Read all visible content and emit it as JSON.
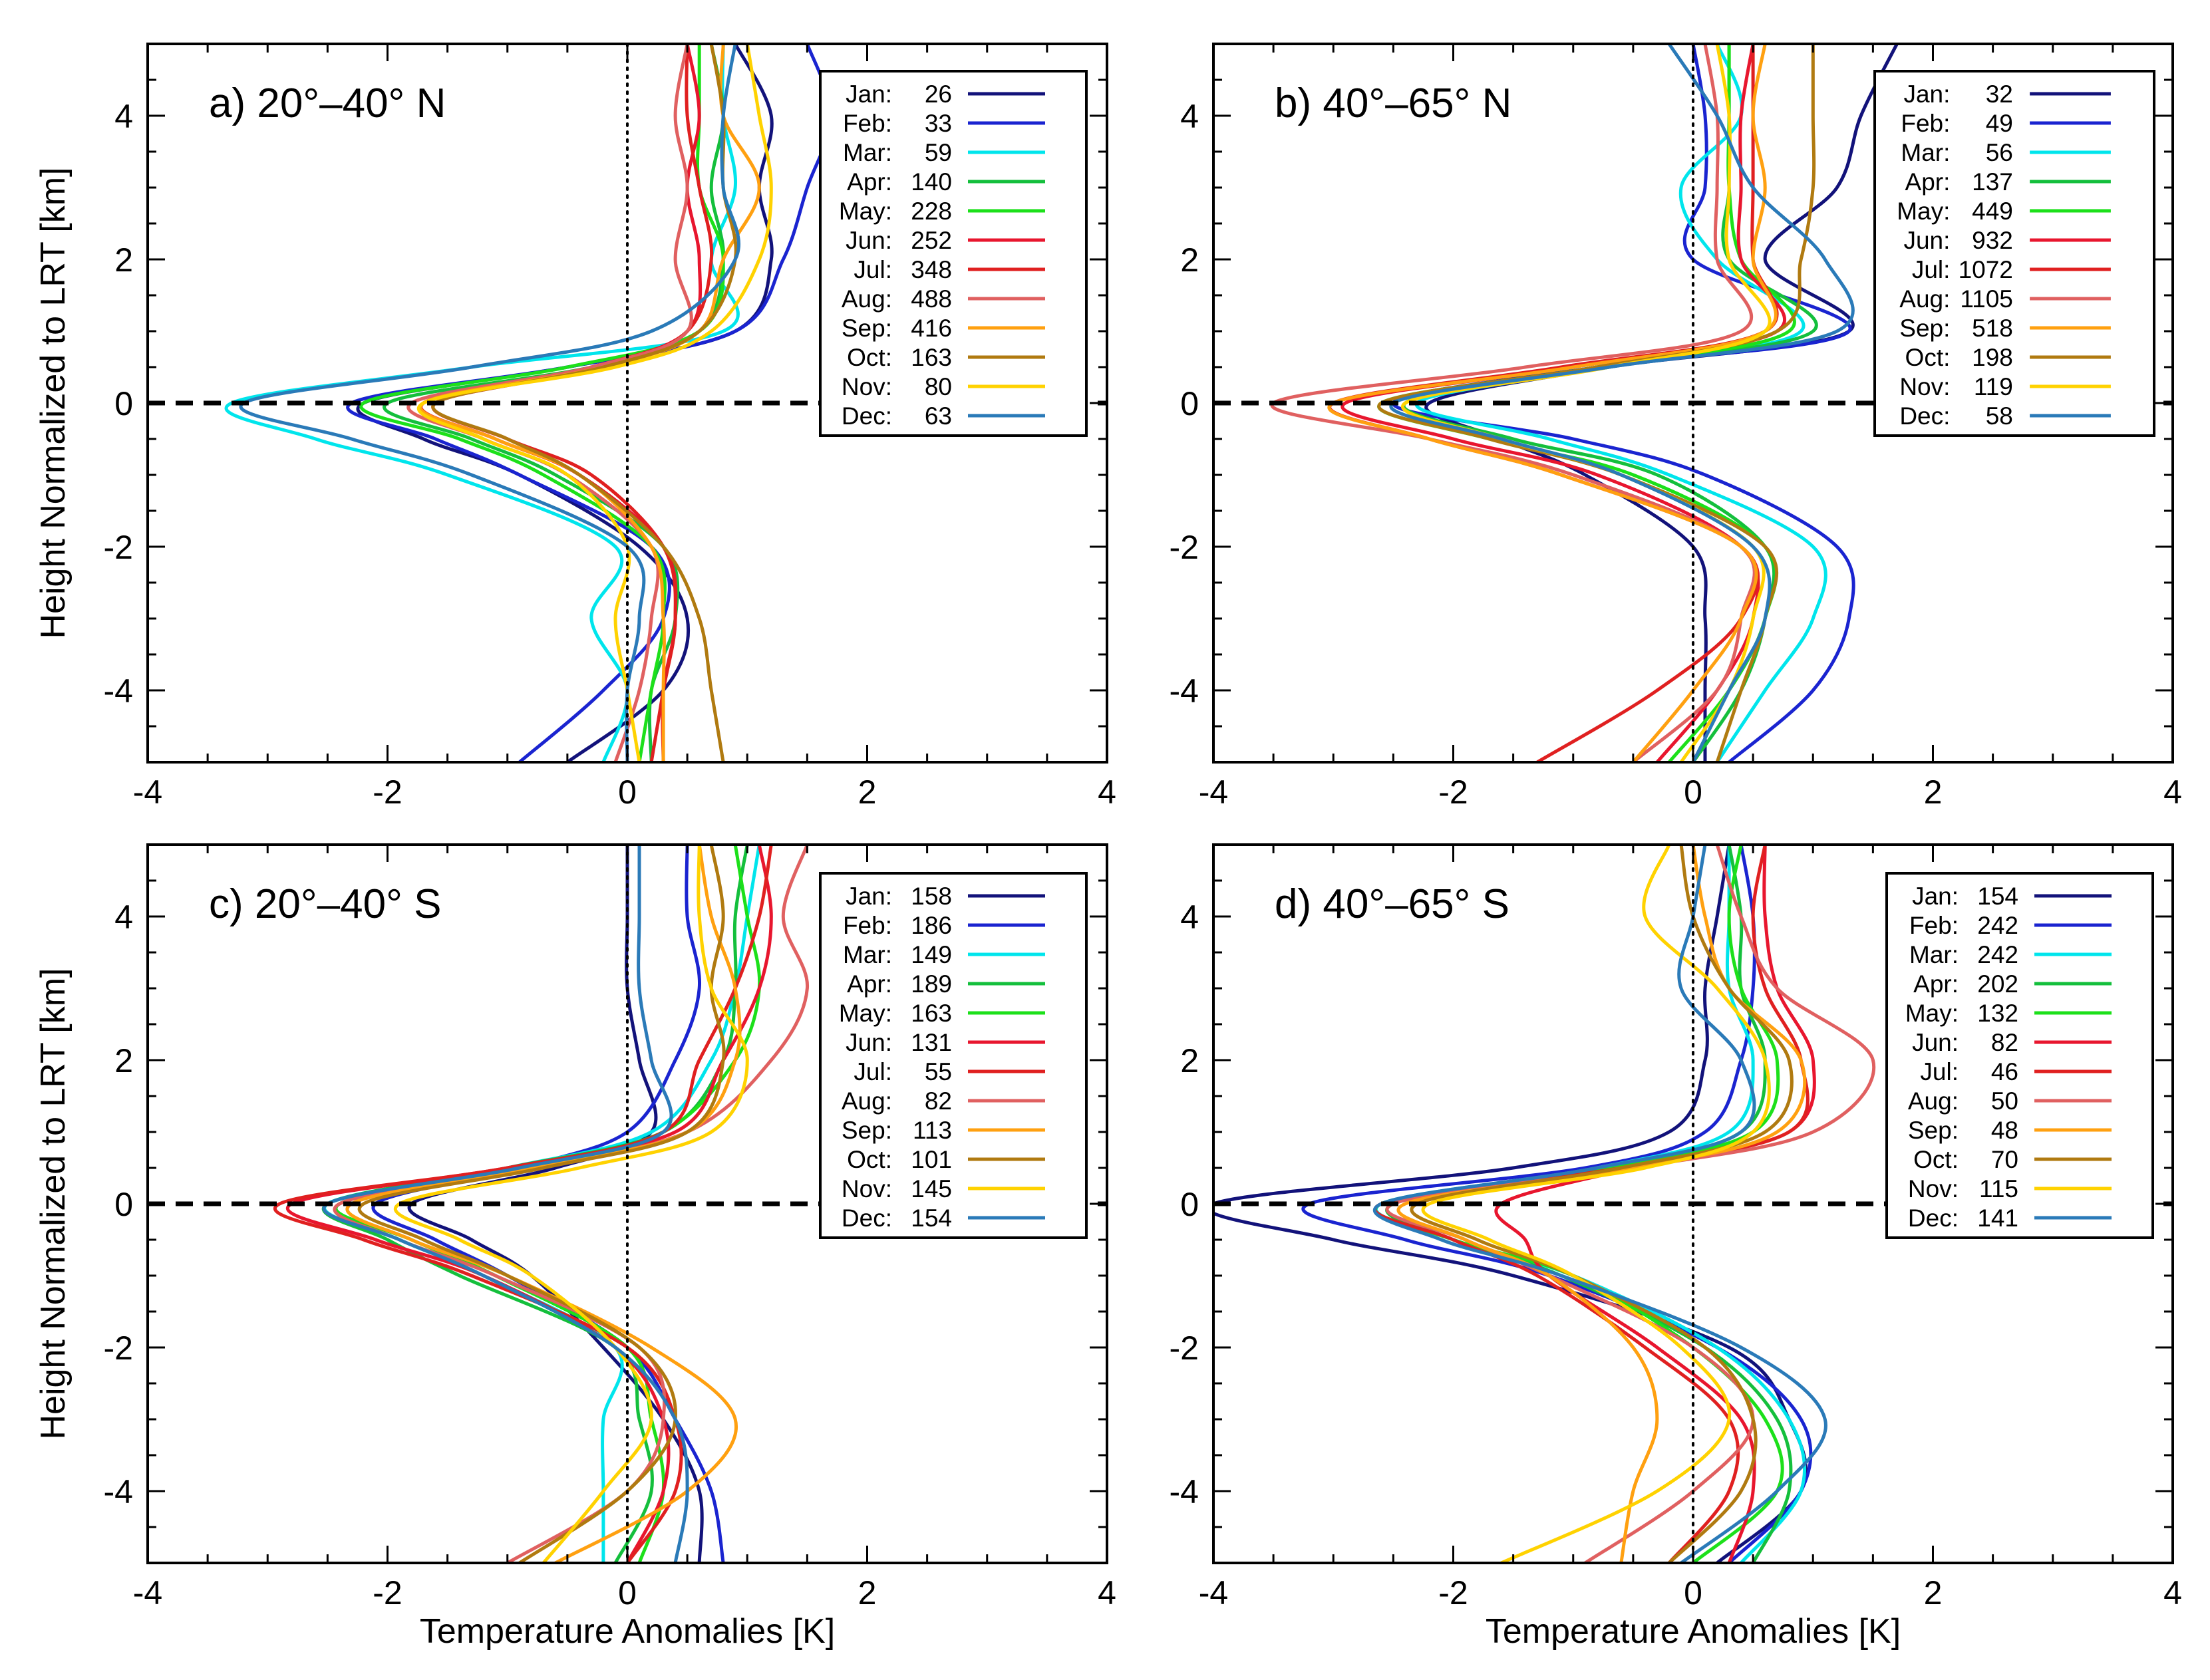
{
  "month_colors": [
    "#12127a",
    "#1a24d0",
    "#00e5ec",
    "#14bf3c",
    "#1ce01a",
    "#e8162e",
    "#e02020",
    "#e06060",
    "#ffa010",
    "#b07a10",
    "#ffd200",
    "#2a7ab8"
  ],
  "chart_data": [
    {
      "type": "line",
      "title": "a) 20°–40° N",
      "xlabel": "",
      "ylabel": "Height Normalized to LRT [km]",
      "xlim": [
        -4,
        4
      ],
      "ylim": [
        -5,
        5
      ],
      "xticks": [
        "-4",
        "-2",
        "0",
        "2",
        "4"
      ],
      "yticks": [
        "-4",
        "-2",
        "0",
        "2",
        "4"
      ],
      "y": [
        -5,
        -4,
        -3,
        -2,
        -1,
        -0.5,
        0,
        0.5,
        1,
        2,
        3,
        4,
        5
      ],
      "series": [
        {
          "name": "Jan",
          "count": 26,
          "values": [
            -0.5,
            0.3,
            0.5,
            0.1,
            -0.9,
            -1.7,
            -2.2,
            -0.5,
            0.9,
            1.2,
            1.1,
            1.2,
            0.9
          ]
        },
        {
          "name": "Feb",
          "count": 33,
          "values": [
            -0.9,
            -0.2,
            0.3,
            0.2,
            -0.9,
            -1.6,
            -2.3,
            -0.5,
            0.9,
            1.3,
            1.5,
            1.7,
            1.5
          ]
        },
        {
          "name": "Mar",
          "count": 59,
          "values": [
            -0.2,
            0.0,
            -0.3,
            -0.1,
            -1.5,
            -2.6,
            -3.3,
            -1.3,
            0.8,
            0.7,
            0.9,
            0.8,
            0.8
          ]
        },
        {
          "name": "Apr",
          "count": 140,
          "values": [
            0.2,
            0.2,
            0.4,
            0.3,
            -0.6,
            -1.3,
            -2.0,
            -0.3,
            0.6,
            0.8,
            0.7,
            0.8,
            0.7
          ]
        },
        {
          "name": "May",
          "count": 228,
          "values": [
            0.1,
            0.2,
            0.3,
            0.2,
            -0.7,
            -1.4,
            -2.2,
            -0.5,
            0.6,
            0.8,
            0.6,
            0.6,
            0.6
          ]
        },
        {
          "name": "Jun",
          "count": 252,
          "values": [
            0.3,
            0.3,
            0.4,
            0.3,
            -0.4,
            -1.1,
            -1.7,
            -0.3,
            0.5,
            0.6,
            0.5,
            0.6,
            0.5
          ]
        },
        {
          "name": "Jul",
          "count": 348,
          "values": [
            0.2,
            0.3,
            0.4,
            0.3,
            -0.3,
            -1.0,
            -1.6,
            -0.2,
            0.5,
            0.7,
            0.6,
            0.5,
            0.5
          ]
        },
        {
          "name": "Aug",
          "count": 488,
          "values": [
            -0.1,
            0.1,
            0.2,
            0.2,
            -0.5,
            -1.2,
            -1.8,
            -0.3,
            0.5,
            0.4,
            0.5,
            0.4,
            0.5
          ]
        },
        {
          "name": "Sep",
          "count": 416,
          "values": [
            0.3,
            0.3,
            0.3,
            0.2,
            -0.4,
            -1.1,
            -1.7,
            -0.2,
            0.6,
            0.8,
            1.1,
            0.8,
            0.8
          ]
        },
        {
          "name": "Oct",
          "count": 163,
          "values": [
            0.8,
            0.7,
            0.6,
            0.3,
            -0.4,
            -1.0,
            -1.6,
            -0.2,
            0.6,
            0.9,
            0.8,
            0.8,
            0.7
          ]
        },
        {
          "name": "Nov",
          "count": 80,
          "values": [
            0.1,
            0.0,
            -0.1,
            0.0,
            -0.5,
            -1.2,
            -1.7,
            -0.1,
            0.7,
            1.1,
            1.2,
            1.1,
            1.0
          ]
        },
        {
          "name": "Dec",
          "count": 63,
          "values": [
            0.0,
            0.0,
            0.1,
            0.0,
            -1.3,
            -2.3,
            -3.2,
            -1.3,
            0.2,
            0.9,
            0.8,
            0.8,
            0.9
          ]
        }
      ]
    },
    {
      "type": "line",
      "title": "b) 40°–65° N",
      "xlabel": "",
      "ylabel": "",
      "xlim": [
        -4,
        4
      ],
      "ylim": [
        -5,
        5
      ],
      "xticks": [
        "-4",
        "-2",
        "0",
        "2",
        "4"
      ],
      "yticks": [
        "-4",
        "-2",
        "0",
        "2",
        "4"
      ],
      "y": [
        -5,
        -4,
        -3,
        -2,
        -1,
        -0.5,
        0,
        0.5,
        1,
        2,
        3,
        4,
        5
      ],
      "series": [
        {
          "name": "Jan",
          "count": 32,
          "values": [
            0.1,
            0.1,
            0.1,
            0.0,
            -0.9,
            -1.6,
            -2.2,
            -0.7,
            1.3,
            0.6,
            1.2,
            1.4,
            1.7
          ]
        },
        {
          "name": "Feb",
          "count": 49,
          "values": [
            0.3,
            1.0,
            1.3,
            1.2,
            0.1,
            -1.0,
            -2.5,
            -0.8,
            1.3,
            0.0,
            0.1,
            0.1,
            0.0
          ]
        },
        {
          "name": "Mar",
          "count": 56,
          "values": [
            0.2,
            0.6,
            1.0,
            1.0,
            -0.2,
            -1.2,
            -2.3,
            -0.7,
            0.9,
            0.2,
            -0.1,
            0.4,
            0.2
          ]
        },
        {
          "name": "Apr",
          "count": 137,
          "values": [
            0.0,
            0.4,
            0.6,
            0.6,
            -0.3,
            -1.5,
            -2.4,
            -0.8,
            1.0,
            0.3,
            0.3,
            0.3,
            0.3
          ]
        },
        {
          "name": "May",
          "count": 449,
          "values": [
            -0.2,
            0.3,
            0.6,
            0.6,
            -0.5,
            -1.7,
            -2.6,
            -0.8,
            0.8,
            0.4,
            0.3,
            0.3,
            0.3
          ]
        },
        {
          "name": "Jun",
          "count": 932,
          "values": [
            -0.3,
            0.2,
            0.5,
            0.4,
            -0.8,
            -2.0,
            -2.9,
            -1.0,
            0.7,
            0.4,
            0.4,
            0.4,
            0.5
          ]
        },
        {
          "name": "Jul",
          "count": 1072,
          "values": [
            -1.3,
            -0.3,
            0.4,
            0.4,
            -1.1,
            -2.2,
            -3.0,
            -1.1,
            0.6,
            0.5,
            0.5,
            0.5,
            0.5
          ]
        },
        {
          "name": "Aug",
          "count": 1105,
          "values": [
            -0.5,
            0.2,
            0.4,
            0.4,
            -1.0,
            -2.2,
            -3.5,
            -1.4,
            0.4,
            0.2,
            0.2,
            0.2,
            0.1
          ]
        },
        {
          "name": "Sep",
          "count": 518,
          "values": [
            -0.5,
            0.0,
            0.4,
            0.4,
            -1.1,
            -2.2,
            -3.0,
            -1.0,
            0.6,
            0.5,
            0.6,
            0.5,
            0.6
          ]
        },
        {
          "name": "Oct",
          "count": 198,
          "values": [
            0.2,
            0.4,
            0.6,
            0.6,
            -0.6,
            -1.7,
            -2.6,
            -0.8,
            0.7,
            0.9,
            1.0,
            1.0,
            1.0
          ]
        },
        {
          "name": "Nov",
          "count": 119,
          "values": [
            -0.1,
            0.3,
            0.5,
            0.5,
            -0.6,
            -1.6,
            -2.4,
            -0.7,
            0.6,
            0.3,
            0.3,
            0.3,
            0.2
          ]
        },
        {
          "name": "Dec",
          "count": 58,
          "values": [
            0.0,
            0.3,
            0.6,
            0.5,
            -0.6,
            -1.6,
            -2.5,
            -0.7,
            1.2,
            1.1,
            0.5,
            0.2,
            -0.2
          ]
        }
      ]
    },
    {
      "type": "line",
      "title": "c) 20°–40° S",
      "xlabel": "Temperature Anomalies [K]",
      "ylabel": "Height Normalized to LRT [km]",
      "xlim": [
        -4,
        4
      ],
      "ylim": [
        -5,
        5
      ],
      "xticks": [
        "-4",
        "-2",
        "0",
        "2",
        "4"
      ],
      "yticks": [
        "-4",
        "-2",
        "0",
        "2",
        "4"
      ],
      "y": [
        -5,
        -4,
        -3,
        -2,
        -1,
        -0.5,
        0,
        0.5,
        1,
        2,
        3,
        4,
        5
      ],
      "series": [
        {
          "name": "Jan",
          "count": 158,
          "values": [
            0.6,
            0.6,
            0.3,
            -0.2,
            -0.8,
            -1.3,
            -1.8,
            -0.6,
            0.2,
            0.1,
            0.0,
            0.0,
            0.0
          ]
        },
        {
          "name": "Feb",
          "count": 186,
          "values": [
            0.8,
            0.7,
            0.4,
            0.0,
            -1.0,
            -1.6,
            -2.1,
            -0.9,
            0.0,
            0.4,
            0.6,
            0.5,
            0.5
          ]
        },
        {
          "name": "Mar",
          "count": 149,
          "values": [
            -0.2,
            -0.2,
            -0.2,
            -0.1,
            -1.2,
            -1.9,
            -2.5,
            -1.0,
            0.2,
            0.7,
            0.9,
            1.0,
            1.1
          ]
        },
        {
          "name": "Apr",
          "count": 189,
          "values": [
            -0.1,
            0.2,
            0.1,
            -0.1,
            -1.4,
            -2.0,
            -2.5,
            -1.0,
            0.3,
            0.8,
            0.9,
            0.9,
            1.0
          ]
        },
        {
          "name": "May",
          "count": 163,
          "values": [
            0.1,
            0.3,
            0.2,
            0.0,
            -1.1,
            -1.8,
            -2.4,
            -0.8,
            0.3,
            0.9,
            1.1,
            1.0,
            0.9
          ]
        },
        {
          "name": "Jun",
          "count": 131,
          "values": [
            0.0,
            0.3,
            0.3,
            -0.1,
            -1.2,
            -2.1,
            -2.8,
            -1.0,
            0.4,
            0.8,
            1.1,
            1.2,
            1.1
          ]
        },
        {
          "name": "Jul",
          "count": 55,
          "values": [
            0.0,
            0.4,
            0.4,
            0.0,
            -1.3,
            -2.2,
            -2.9,
            -1.0,
            0.3,
            0.6,
            0.9,
            1.1,
            1.2
          ]
        },
        {
          "name": "Aug",
          "count": 82,
          "values": [
            -1.0,
            0.0,
            0.3,
            0.1,
            -1.1,
            -1.9,
            -2.4,
            -0.8,
            0.5,
            1.2,
            1.5,
            1.3,
            1.5
          ]
        },
        {
          "name": "Sep",
          "count": 113,
          "values": [
            -0.6,
            0.5,
            0.9,
            0.2,
            -1.0,
            -1.8,
            -2.3,
            -0.8,
            0.5,
            0.9,
            0.9,
            0.7,
            0.6
          ]
        },
        {
          "name": "Oct",
          "count": 101,
          "values": [
            -0.9,
            0.0,
            0.4,
            0.1,
            -1.0,
            -1.7,
            -2.2,
            -0.7,
            0.5,
            0.8,
            0.7,
            0.8,
            0.7
          ]
        },
        {
          "name": "Nov",
          "count": 145,
          "values": [
            -0.7,
            -0.2,
            0.2,
            -0.1,
            -0.8,
            -1.4,
            -1.9,
            -0.4,
            0.7,
            1.0,
            0.7,
            0.6,
            0.6
          ]
        },
        {
          "name": "Dec",
          "count": 154,
          "values": [
            0.4,
            0.5,
            0.4,
            -0.1,
            -1.2,
            -1.9,
            -2.5,
            -0.9,
            0.3,
            0.2,
            0.1,
            0.1,
            0.1
          ]
        }
      ]
    },
    {
      "type": "line",
      "title": "d) 40°–65° S",
      "xlabel": "Temperature Anomalies [K]",
      "ylabel": "",
      "xlim": [
        -4,
        4
      ],
      "ylim": [
        -5,
        5
      ],
      "xticks": [
        "-4",
        "-2",
        "0",
        "2",
        "4"
      ],
      "yticks": [
        "-4",
        "-2",
        "0",
        "2",
        "4"
      ],
      "y": [
        -5,
        -4,
        -3,
        -2,
        -1,
        -0.5,
        0,
        0.5,
        1,
        2,
        3,
        4,
        5
      ],
      "series": [
        {
          "name": "Jan",
          "count": 154,
          "values": [
            0.2,
            0.9,
            0.8,
            0.3,
            -1.5,
            -3.0,
            -4.0,
            -1.5,
            -0.2,
            0.1,
            0.1,
            0.2,
            0.3
          ]
        },
        {
          "name": "Feb",
          "count": 242,
          "values": [
            0.3,
            0.9,
            0.9,
            0.2,
            -1.2,
            -2.4,
            -3.2,
            -0.9,
            0.1,
            0.4,
            0.5,
            0.5,
            0.4
          ]
        },
        {
          "name": "Mar",
          "count": 242,
          "values": [
            0.4,
            0.9,
            0.8,
            0.2,
            -1.0,
            -2.0,
            -2.6,
            -0.8,
            0.3,
            0.5,
            0.3,
            0.3,
            0.3
          ]
        },
        {
          "name": "Apr",
          "count": 202,
          "values": [
            0.5,
            0.8,
            0.7,
            0.1,
            -1.1,
            -2.0,
            -2.5,
            -0.7,
            0.4,
            0.6,
            0.4,
            0.4,
            0.3
          ]
        },
        {
          "name": "May",
          "count": 132,
          "values": [
            0.0,
            0.7,
            0.6,
            0.0,
            -1.0,
            -2.0,
            -2.6,
            -0.7,
            0.5,
            0.7,
            0.4,
            0.3,
            0.4
          ]
        },
        {
          "name": "Jun",
          "count": 82,
          "values": [
            0.3,
            0.5,
            0.4,
            -0.3,
            -1.2,
            -1.4,
            -1.6,
            -0.5,
            0.8,
            1.0,
            0.7,
            0.6,
            0.6
          ]
        },
        {
          "name": "Jul",
          "count": 46,
          "values": [
            -0.2,
            0.3,
            0.3,
            -0.4,
            -1.3,
            -2.0,
            -2.6,
            -0.6,
            0.8,
            0.9,
            0.6,
            0.5,
            0.6
          ]
        },
        {
          "name": "Aug",
          "count": 50,
          "values": [
            -0.9,
            0.0,
            0.5,
            0.0,
            -1.2,
            -1.9,
            -2.5,
            -0.5,
            1.0,
            1.5,
            0.7,
            0.4,
            0.2
          ]
        },
        {
          "name": "Sep",
          "count": 48,
          "values": [
            -0.6,
            -0.5,
            -0.3,
            -0.5,
            -1.2,
            -1.9,
            -2.4,
            -0.5,
            0.7,
            0.9,
            0.3,
            0.1,
            0.0
          ]
        },
        {
          "name": "Oct",
          "count": 70,
          "values": [
            -0.2,
            0.4,
            0.5,
            0.1,
            -1.0,
            -1.8,
            -2.3,
            -0.6,
            0.6,
            0.8,
            0.3,
            0.0,
            -0.1
          ]
        },
        {
          "name": "Nov",
          "count": 115,
          "values": [
            -1.6,
            -0.3,
            0.3,
            -0.1,
            -1.0,
            -1.7,
            -2.2,
            -0.4,
            0.5,
            0.6,
            0.2,
            -0.4,
            -0.2
          ]
        },
        {
          "name": "Dec",
          "count": 141,
          "values": [
            -0.1,
            0.7,
            1.1,
            0.4,
            -1.1,
            -2.1,
            -2.6,
            -0.8,
            0.4,
            0.4,
            -0.1,
            0.0,
            0.1
          ]
        }
      ]
    }
  ]
}
